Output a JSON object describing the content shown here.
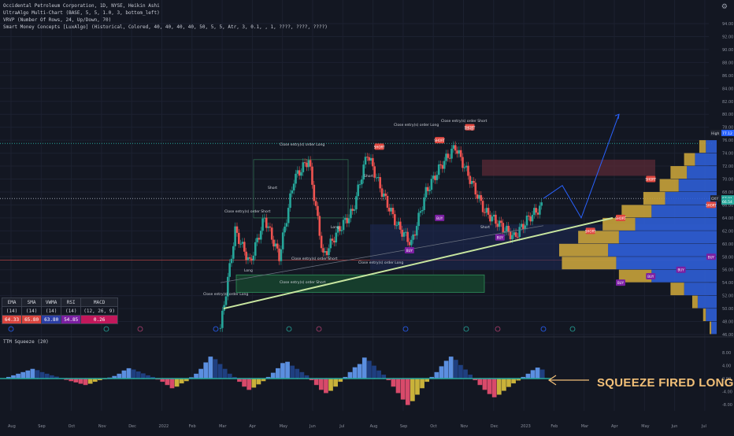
{
  "legend": {
    "line1": "Occidental Petroleum Corporation, 1D, NYSE, Heikin Ashi",
    "line2": "UltraAlgo Multi-Chart (BASE, 5, 5, 1.0, 3, bottom_left)",
    "line3": "VRVP (Number Of Rows, 24, Up/Down, 70)",
    "line4": "Smart Money Concepts [LuxAlgo] (Historical, Colored, 40, 40, 40, 40, 50, 5, 5, Atr, 3, 0.1, , 1, ????, ????, ????)"
  },
  "pane2_title": "TTM Squeeze (20)",
  "annotation": "SQUEEZE FIRED LONG",
  "settings_icon": "gear-icon",
  "indicator_table": {
    "headers": [
      "EMA",
      "SMA",
      "VWMA",
      "RSI",
      "MACD"
    ],
    "params": [
      "(14)",
      "(14)",
      "(14)",
      "(14)",
      "(12, 26, 9)"
    ],
    "values": [
      "64.33",
      "65.80",
      "63.80",
      "54.85",
      "0.26"
    ]
  },
  "colors": {
    "background": "#131722",
    "up_candle": "#26a69a",
    "down_candle": "#ef5350",
    "trendline": "#c8e6a0",
    "forecast": "#2962ff",
    "vrvp_up": "#2f5ed6",
    "vrvp_down": "#c8a23a",
    "annotation": "#f3c078",
    "dotted_level": "#26a69a",
    "red_level": "#ef5350"
  },
  "chart_data": [
    {
      "type": "line",
      "subtype": "heikin-ashi candles (approximate weekly path)",
      "x": [
        "Aug",
        "Sep",
        "Oct",
        "Nov",
        "Dec",
        "2022",
        "Feb",
        "Mar",
        "Apr",
        "May",
        "Jun",
        "Jul",
        "Aug",
        "Sep",
        "Oct",
        "Nov",
        "Dec",
        "2023",
        "Feb",
        "Mar",
        "Apr",
        "May",
        "Jun",
        "Jul"
      ],
      "price_path": [
        {
          "x": "Mar",
          "y": 47
        },
        {
          "x": "Mar",
          "y": 62
        },
        {
          "x": "Apr",
          "y": 57
        },
        {
          "x": "Apr",
          "y": 64
        },
        {
          "x": "May",
          "y": 58
        },
        {
          "x": "May",
          "y": 70
        },
        {
          "x": "Jun",
          "y": 73
        },
        {
          "x": "Jun",
          "y": 58
        },
        {
          "x": "Jul",
          "y": 62
        },
        {
          "x": "Jul",
          "y": 65
        },
        {
          "x": "Aug",
          "y": 74
        },
        {
          "x": "Aug",
          "y": 68
        },
        {
          "x": "Sep",
          "y": 63
        },
        {
          "x": "Sep",
          "y": 60
        },
        {
          "x": "Oct",
          "y": 68
        },
        {
          "x": "Oct",
          "y": 72
        },
        {
          "x": "Nov",
          "y": 75
        },
        {
          "x": "Nov",
          "y": 70
        },
        {
          "x": "Dec",
          "y": 65
        },
        {
          "x": "Dec",
          "y": 63
        },
        {
          "x": "2023",
          "y": 61
        },
        {
          "x": "2023",
          "y": 64
        },
        {
          "x": "Feb",
          "y": 66
        }
      ],
      "forecast_path": [
        {
          "x": "Feb",
          "y": 67
        },
        {
          "x": "Feb",
          "y": 69
        },
        {
          "x": "Mar",
          "y": 64
        },
        {
          "x": "Apr",
          "y": 72
        },
        {
          "x": "May",
          "y": 80
        }
      ],
      "y_ticks": [
        46,
        48,
        50,
        52,
        54,
        56,
        58,
        60,
        62,
        64,
        66,
        68,
        70,
        72,
        74,
        76,
        78,
        80,
        82,
        84,
        86,
        88,
        90,
        92,
        94
      ],
      "ylim": [
        46,
        94
      ],
      "price_labels": [
        {
          "label": "High",
          "value": 77.12
        },
        {
          "label": "OXY",
          "value": 67.01
        },
        {
          "label": "",
          "value": 66.54
        }
      ],
      "levels": {
        "dotted_high": 75.5,
        "dotted_current": 67.0,
        "red_level": 57.5
      },
      "vrvp_rows": [
        {
          "price": 75,
          "up": 20,
          "down": 12
        },
        {
          "price": 73,
          "up": 40,
          "down": 20
        },
        {
          "price": 71,
          "up": 55,
          "down": 30
        },
        {
          "price": 69,
          "up": 70,
          "down": 35
        },
        {
          "price": 67,
          "up": 95,
          "down": 40
        },
        {
          "price": 65,
          "up": 120,
          "down": 55
        },
        {
          "price": 63,
          "up": 150,
          "down": 60
        },
        {
          "price": 61,
          "up": 180,
          "down": 75
        },
        {
          "price": 59,
          "up": 200,
          "down": 90
        },
        {
          "price": 57,
          "up": 185,
          "down": 100
        },
        {
          "price": 55,
          "up": 120,
          "down": 60
        },
        {
          "price": 53,
          "up": 60,
          "down": 25
        },
        {
          "price": 51,
          "up": 35,
          "down": 10
        },
        {
          "price": 49,
          "up": 20,
          "down": 5
        },
        {
          "price": 47,
          "up": 10,
          "down": 3
        }
      ],
      "signals": [
        {
          "text": "SHORT",
          "x": "Mar",
          "y": 62
        },
        {
          "text": "SHORT",
          "x": "Apr",
          "y": 64
        },
        {
          "text": "SHORT",
          "x": "May",
          "y": 70
        },
        {
          "text": "SHORT",
          "x": "Jul",
          "y": 66
        },
        {
          "text": "SHORT",
          "x": "Aug",
          "y": 75
        },
        {
          "text": "SHORT",
          "x": "Oct",
          "y": 76
        },
        {
          "text": "SHORT",
          "x": "Nov",
          "y": 78
        },
        {
          "text": "BUY",
          "x": "Apr",
          "y": 54
        },
        {
          "text": "BUY",
          "x": "May",
          "y": 55
        },
        {
          "text": "BUY",
          "x": "Jun",
          "y": 56
        },
        {
          "text": "BUY",
          "x": "Jul",
          "y": 58
        },
        {
          "text": "BUY",
          "x": "Sep",
          "y": 59
        },
        {
          "text": "BUY",
          "x": "Oct",
          "y": 64
        },
        {
          "text": "BUY",
          "x": "Dec",
          "y": 61
        }
      ],
      "order_labels": [
        "Close entry(s) order Long",
        "Close entry(s) order Short",
        "Long",
        "Short"
      ]
    },
    {
      "type": "bar",
      "title": "TTM Squeeze (20)",
      "y_ticks": [
        8.0,
        4.0,
        0.0,
        -4.0,
        -8.0
      ],
      "ylim": [
        -10,
        10
      ],
      "values": [
        0.5,
        1,
        1.5,
        2,
        2.5,
        3,
        2.6,
        2,
        1.5,
        1,
        0.6,
        0.2,
        -0.4,
        -0.8,
        -1.2,
        -1.6,
        -2,
        -1.6,
        -1,
        -0.5,
        -0.2,
        0.3,
        0.8,
        1.5,
        2.5,
        3.2,
        2.8,
        2.2,
        1.6,
        1,
        0.5,
        -0.3,
        -1,
        -2,
        -3,
        -2.5,
        -1.5,
        -0.8,
        0.4,
        1.5,
        3,
        5,
        6.8,
        6,
        4.5,
        3,
        1.5,
        0.5,
        -1,
        -2.5,
        -3.5,
        -2.8,
        -1.8,
        -0.8,
        0.5,
        1.8,
        3.2,
        4.8,
        5.2,
        4,
        3,
        2,
        1,
        -0.5,
        -2,
        -3.5,
        -4.5,
        -3.8,
        -2.5,
        -1,
        0.5,
        2,
        3.5,
        4.5,
        6.5,
        5.5,
        4,
        2.5,
        1.2,
        -0.5,
        -2.5,
        -4.5,
        -6.5,
        -8.2,
        -7,
        -5,
        -3,
        -1,
        0.5,
        2,
        3.8,
        5.5,
        6.8,
        5.8,
        4.2,
        2.8,
        1.2,
        -0.5,
        -2,
        -3.5,
        -4.8,
        -5.8,
        -5,
        -3.8,
        -2.6,
        -1.5,
        -0.6,
        0.5,
        1.5,
        2.6,
        3.4,
        2.8
      ]
    }
  ]
}
